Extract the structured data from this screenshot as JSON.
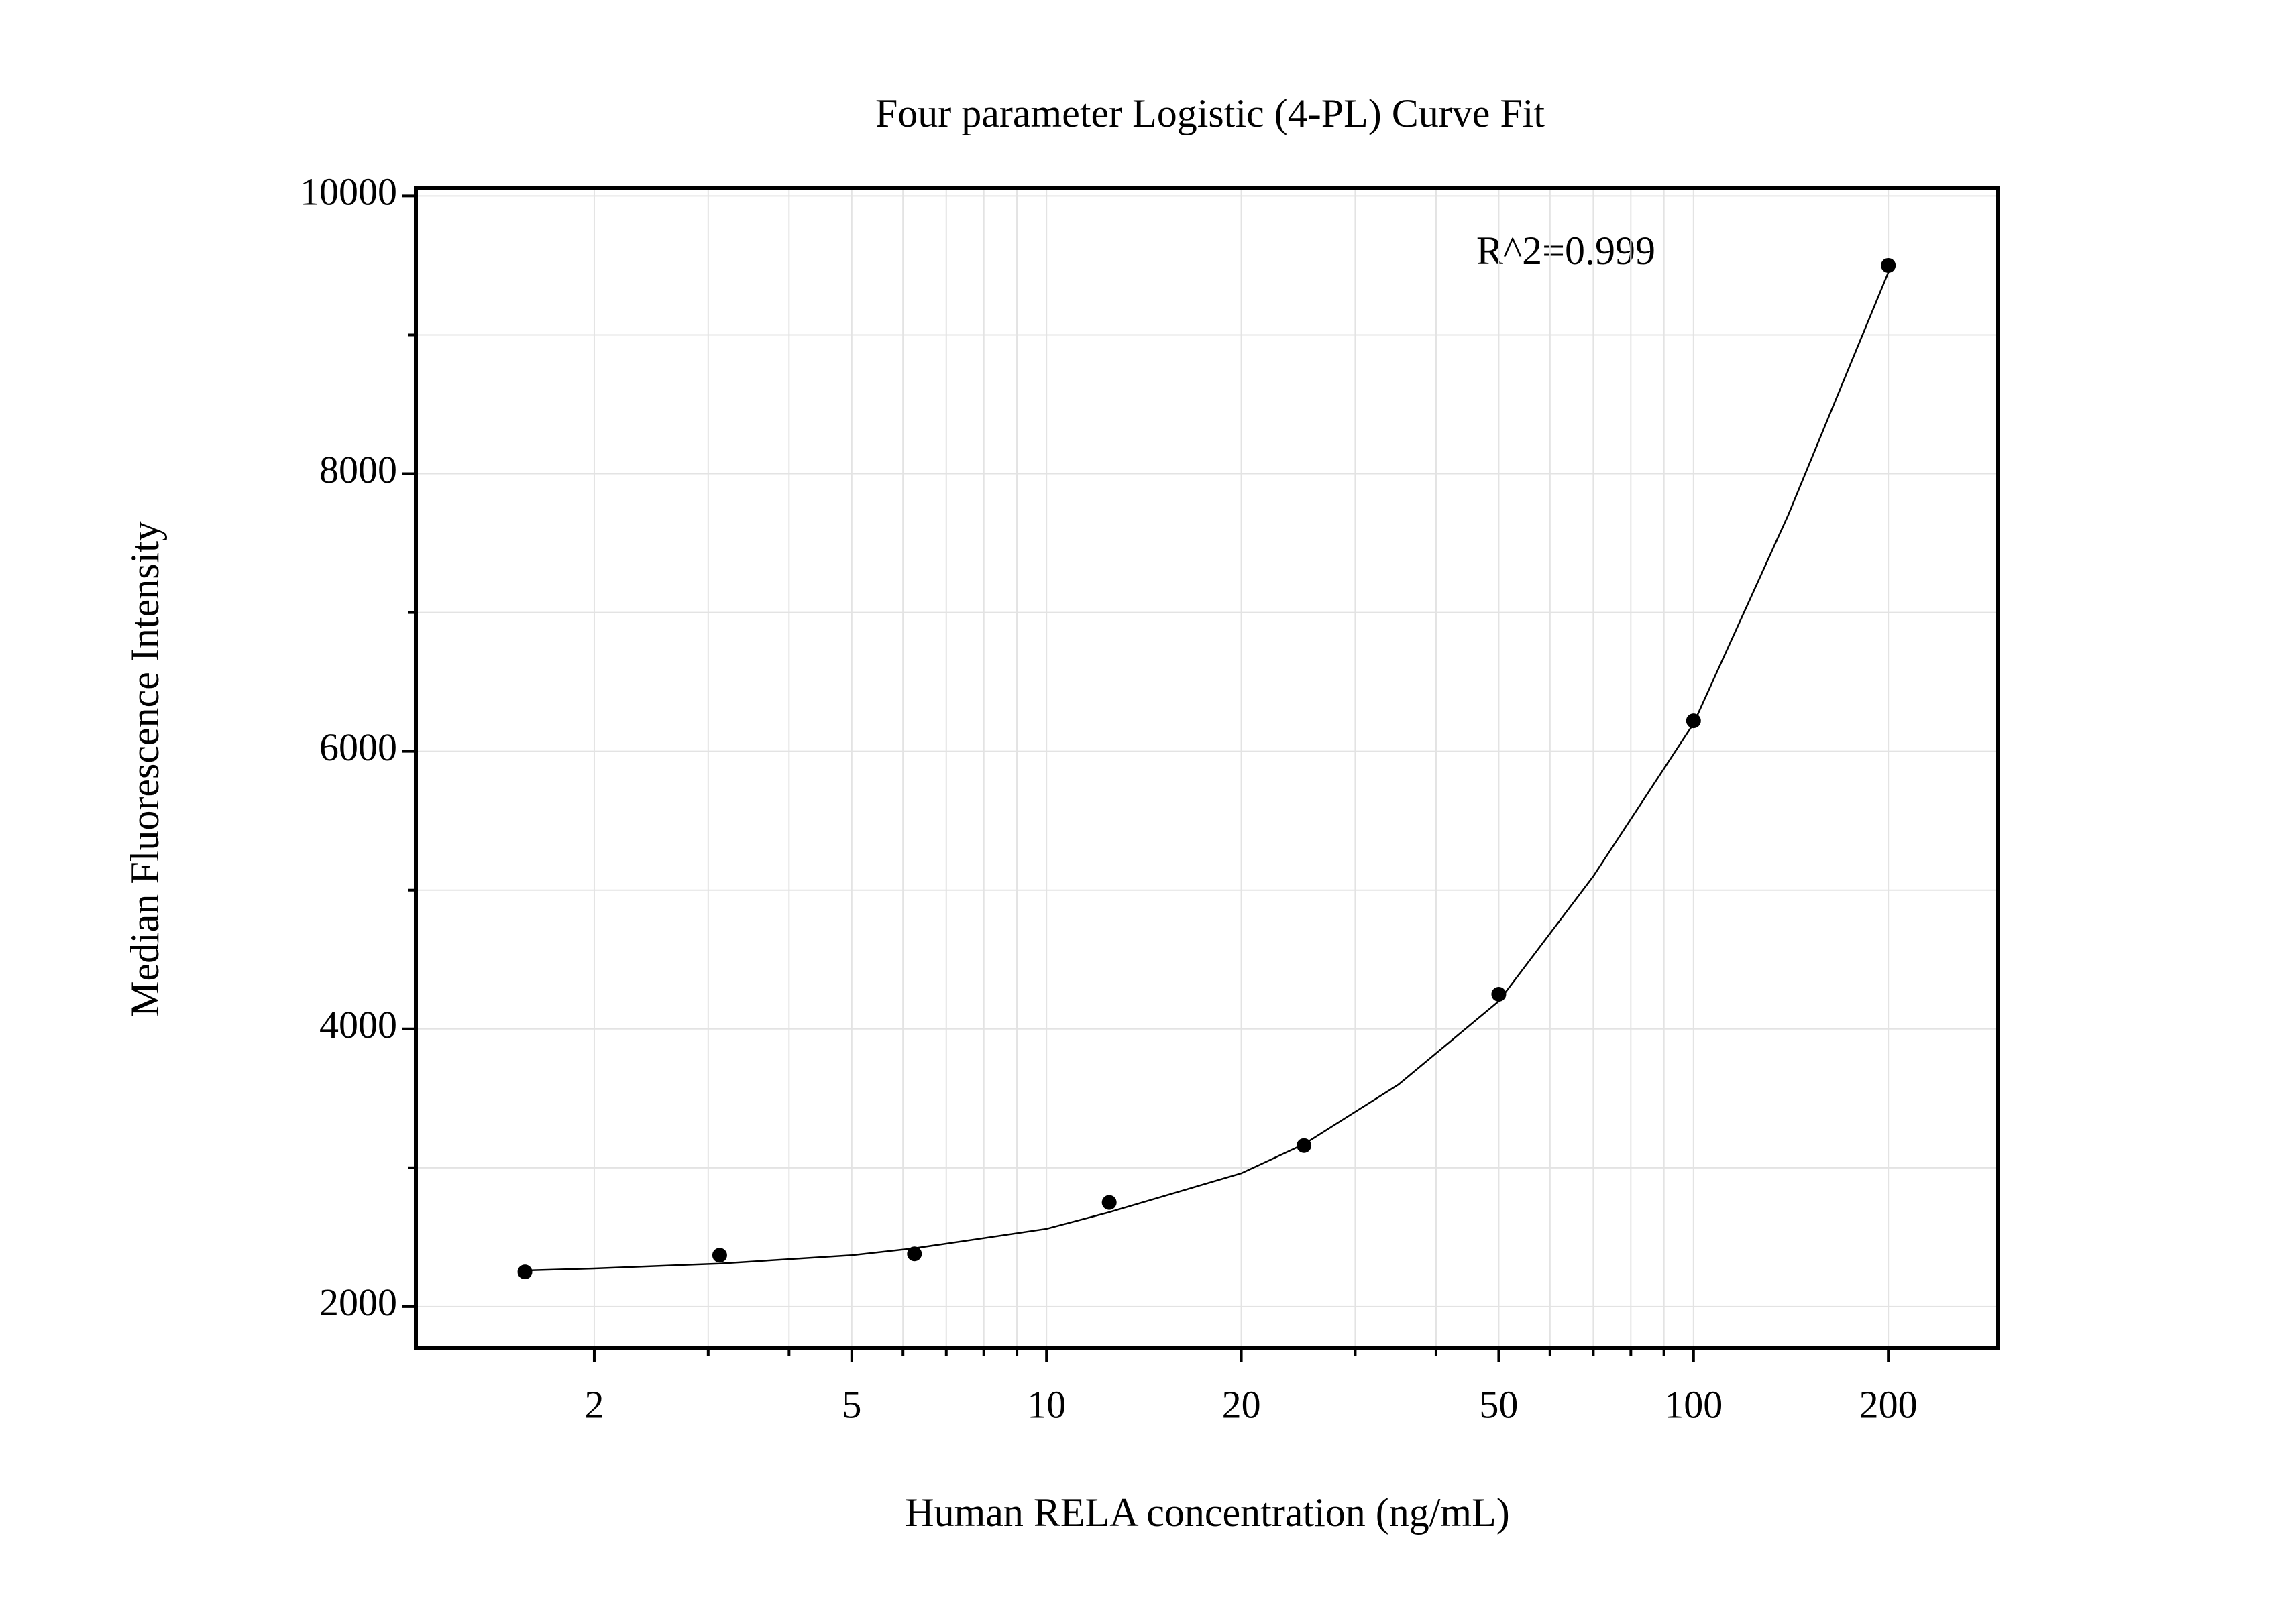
{
  "chart_data": {
    "type": "scatter",
    "title": "Four parameter Logistic (4-PL) Curve Fit",
    "x_label": "Human RELA concentration (ng/mL)",
    "y_label": "Median Fluorescence Intensity",
    "annotation": "R^2=0.999",
    "x_scale": "log",
    "grid": true,
    "xlim": [
      1.06,
      295
    ],
    "ylim": [
      1700,
      10060
    ],
    "xticks": [
      2,
      5,
      10,
      20,
      50,
      100,
      200
    ],
    "xminorticks": [
      3,
      4,
      6,
      7,
      8,
      9,
      30,
      40,
      60,
      70,
      80,
      90
    ],
    "yticks": [
      2000,
      4000,
      6000,
      8000,
      10000
    ],
    "yminorticks": [
      3000,
      5000,
      7000,
      9000
    ],
    "series": [
      {
        "color": "#000000",
        "x": [
          1.5625,
          3.125,
          6.25,
          12.5,
          25,
          50,
          100,
          200
        ],
        "values": [
          2250,
          2370,
          2380,
          2750,
          3160,
          4250,
          6220,
          9500
        ]
      }
    ],
    "fit_curve": {
      "color": "#000000",
      "x": [
        1.5625,
        2,
        3.125,
        5,
        6.25,
        10,
        12.5,
        20,
        25,
        35,
        50,
        70,
        100,
        140,
        200
      ],
      "values": [
        2260,
        2275,
        2310,
        2370,
        2420,
        2560,
        2680,
        2960,
        3170,
        3600,
        4200,
        5100,
        6200,
        7700,
        9450
      ]
    }
  }
}
